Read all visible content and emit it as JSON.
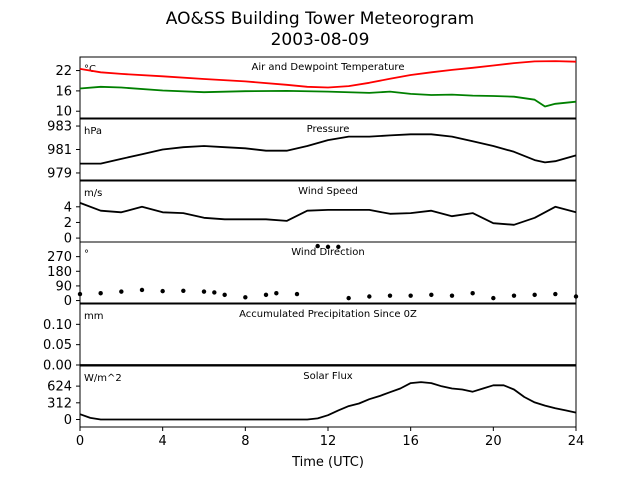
{
  "chart_data": {
    "title": "AO&SS Building Tower Meteorogram",
    "subtitle": "2003-08-09",
    "xlabel": "Time (UTC)",
    "xlim": [
      0,
      24
    ],
    "xticks": [
      0,
      4,
      8,
      12,
      16,
      20,
      24
    ],
    "panels": [
      {
        "id": "temperature",
        "type": "line",
        "title": "Air and Dewpoint Temperature",
        "unit": "°C",
        "ylim": [
          8,
          26
        ],
        "yticks": [
          10,
          16,
          22
        ],
        "series": [
          {
            "color": "#ff0000",
            "x": [
              0,
              1,
              2,
              4,
              6,
              8,
              10,
              11,
              12,
              13,
              14,
              15,
              16,
              17,
              18,
              19,
              20,
              21,
              22,
              23,
              24
            ],
            "y": [
              22.5,
              21.5,
              21,
              20.3,
              19.5,
              18.8,
              17.8,
              17.2,
              17,
              17.4,
              18.4,
              19.6,
              20.7,
              21.5,
              22.2,
              22.8,
              23.5,
              24.2,
              24.7,
              24.8,
              24.6
            ]
          },
          {
            "color": "#008000",
            "x": [
              0,
              1,
              2,
              4,
              6,
              8,
              10,
              12,
              14,
              15,
              16,
              17,
              18,
              19,
              20,
              21,
              22,
              22.5,
              23,
              24
            ],
            "y": [
              16.7,
              17.2,
              17,
              16.1,
              15.6,
              15.9,
              16,
              15.8,
              15.4,
              15.8,
              15.1,
              14.8,
              14.9,
              14.6,
              14.5,
              14.3,
              13.4,
              11.4,
              12.2,
              12.8
            ]
          }
        ]
      },
      {
        "id": "pressure",
        "type": "line",
        "title": "Pressure",
        "unit": "hPa",
        "ylim": [
          978.4,
          983.6
        ],
        "yticks": [
          979,
          981,
          983
        ],
        "series": [
          {
            "color": "#000000",
            "x": [
              0,
              1,
              2,
              3,
              4,
              5,
              6,
              7,
              8,
              9,
              10,
              11,
              12,
              13,
              14,
              15,
              16,
              17,
              18,
              19,
              20,
              21,
              22,
              22.5,
              23,
              24
            ],
            "y": [
              979.8,
              979.8,
              980.2,
              980.6,
              981.0,
              981.2,
              981.3,
              981.2,
              981.1,
              980.9,
              980.9,
              981.3,
              981.8,
              982.1,
              982.1,
              982.2,
              982.3,
              982.3,
              982.1,
              981.7,
              981.3,
              980.8,
              980.1,
              979.9,
              980.0,
              980.5
            ]
          }
        ]
      },
      {
        "id": "wind-speed",
        "type": "line",
        "title": "Wind Speed",
        "unit": "m/s",
        "ylim": [
          -0.5,
          7.3
        ],
        "yticks": [
          0,
          2,
          4
        ],
        "series": [
          {
            "color": "#000000",
            "x": [
              0,
              1,
              2,
              3,
              4,
              5,
              6,
              7,
              8,
              9,
              10,
              11,
              12,
              13,
              14,
              15,
              16,
              17,
              18,
              19,
              20,
              21,
              22,
              23,
              24
            ],
            "y": [
              4.5,
              3.5,
              3.3,
              4,
              3.3,
              3.2,
              2.6,
              2.4,
              2.4,
              2.4,
              2.2,
              3.5,
              3.6,
              3.6,
              3.6,
              3.1,
              3.2,
              3.5,
              2.8,
              3.2,
              1.9,
              1.7,
              2.6,
              4,
              3.3
            ]
          }
        ]
      },
      {
        "id": "wind-direction",
        "type": "scatter",
        "title": "Wind Direction",
        "unit": "°",
        "ylim": [
          -15,
          360
        ],
        "yticks": [
          0,
          90,
          180,
          270
        ],
        "series": [
          {
            "color": "#000000",
            "x": [
              0,
              1,
              2,
              3,
              4,
              5,
              6,
              6.5,
              7,
              8,
              9,
              9.5,
              10.5,
              11.5,
              12,
              12.5,
              13,
              14,
              15,
              16,
              17,
              18,
              19,
              20,
              21,
              22,
              23,
              24
            ],
            "y": [
              40,
              45,
              55,
              65,
              58,
              60,
              55,
              50,
              35,
              20,
              35,
              45,
              40,
              335,
              330,
              330,
              15,
              25,
              30,
              30,
              35,
              30,
              45,
              15,
              30,
              35,
              40,
              25
            ]
          }
        ]
      },
      {
        "id": "precipitation",
        "type": "line",
        "title": "Accumulated Precipitation Since 0Z",
        "unit": "mm",
        "ylim": [
          0,
          0.15
        ],
        "yticks": [
          0.0,
          0.05,
          0.1
        ],
        "series": [
          {
            "color": "#000000",
            "x": [
              0,
              24
            ],
            "y": [
              0,
              0
            ]
          }
        ]
      },
      {
        "id": "solar-flux",
        "type": "line",
        "title": "Solar Flux",
        "unit": "W/m^2",
        "ylim": [
          -140,
          1000
        ],
        "yticks": [
          0,
          312,
          624
        ],
        "series": [
          {
            "color": "#000000",
            "x": [
              0,
              0.5,
              1,
              4,
              8,
              10,
              11,
              11.5,
              12,
              12.5,
              13,
              13.5,
              14,
              14.5,
              15,
              15.5,
              16,
              16.5,
              17,
              17.5,
              18,
              18.5,
              19,
              19.5,
              20,
              20.5,
              21,
              21.5,
              22,
              22.5,
              23,
              23.5,
              24
            ],
            "y": [
              100,
              30,
              0,
              0,
              0,
              0,
              0,
              20,
              80,
              170,
              250,
              300,
              380,
              440,
              510,
              580,
              680,
              700,
              680,
              620,
              580,
              560,
              520,
              580,
              640,
              640,
              560,
              420,
              320,
              260,
              210,
              170,
              130
            ]
          }
        ]
      }
    ]
  }
}
